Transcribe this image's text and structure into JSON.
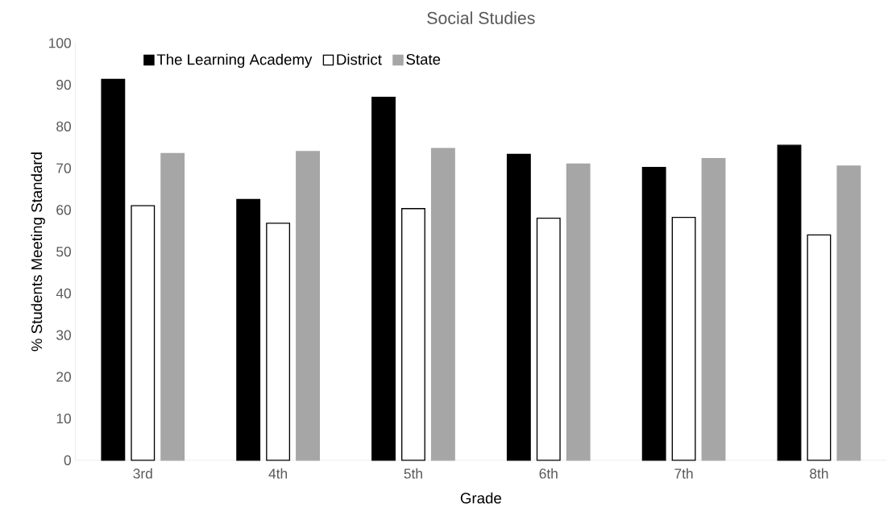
{
  "chart_data": {
    "type": "bar",
    "title": "Social Studies",
    "xlabel": "Grade",
    "ylabel": "% Students Meeting Standard",
    "categories": [
      "3rd",
      "4th",
      "5th",
      "6th",
      "7th",
      "8th"
    ],
    "series": [
      {
        "name": "The Learning Academy",
        "color": "#000000",
        "values": [
          91.3,
          62.5,
          87,
          73.3,
          70.2,
          75.5
        ]
      },
      {
        "name": "District",
        "color": "#ffffff",
        "values": [
          61,
          56.8,
          60.3,
          58,
          58.2,
          54
        ]
      },
      {
        "name": "State",
        "color": "#a6a6a6",
        "values": [
          73.5,
          74,
          74.7,
          71,
          72.3,
          70.5
        ]
      }
    ],
    "ylim": [
      0,
      100
    ],
    "yticks": [
      0,
      10,
      20,
      30,
      40,
      50,
      60,
      70,
      80,
      90,
      100
    ],
    "grid": false,
    "legend": "top left"
  }
}
